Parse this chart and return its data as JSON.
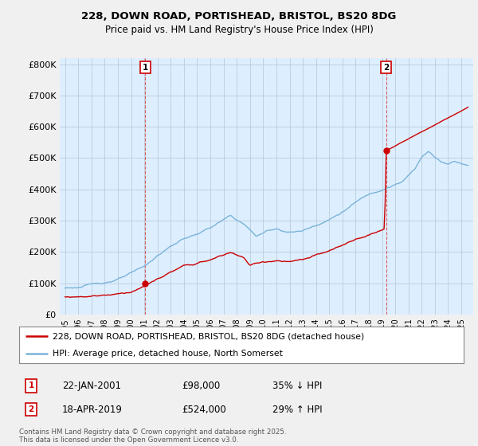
{
  "title_line1": "228, DOWN ROAD, PORTISHEAD, BRISTOL, BS20 8DG",
  "title_line2": "Price paid vs. HM Land Registry's House Price Index (HPI)",
  "legend_entry1": "228, DOWN ROAD, PORTISHEAD, BRISTOL, BS20 8DG (detached house)",
  "legend_entry2": "HPI: Average price, detached house, North Somerset",
  "annotation1": {
    "num": "1",
    "date": "22-JAN-2001",
    "price": "£98,000",
    "pct": "35% ↓ HPI"
  },
  "annotation2": {
    "num": "2",
    "date": "18-APR-2019",
    "price": "£524,000",
    "pct": "29% ↑ HPI"
  },
  "footnote": "Contains HM Land Registry data © Crown copyright and database right 2025.\nThis data is licensed under the Open Government Licence v3.0.",
  "hpi_color": "#7ab4d8",
  "price_color": "#cc0000",
  "vline_color": "#dd4444",
  "background_color": "#f0f0f0",
  "plot_bg_color": "#ddeeff",
  "grid_color": "#bbccdd",
  "ylim": [
    0,
    820000
  ],
  "yticks": [
    0,
    100000,
    200000,
    300000,
    400000,
    500000,
    600000,
    700000,
    800000
  ],
  "ytick_labels": [
    "£0",
    "£100K",
    "£200K",
    "£300K",
    "£400K",
    "£500K",
    "£600K",
    "£700K",
    "£800K"
  ],
  "marker1_x": 2001.07,
  "marker1_y": 98000,
  "marker2_x": 2019.3,
  "marker2_y": 524000,
  "vline1_x": 2001.07,
  "vline2_x": 2019.3,
  "xlim_left": 1994.6,
  "xlim_right": 2025.9
}
